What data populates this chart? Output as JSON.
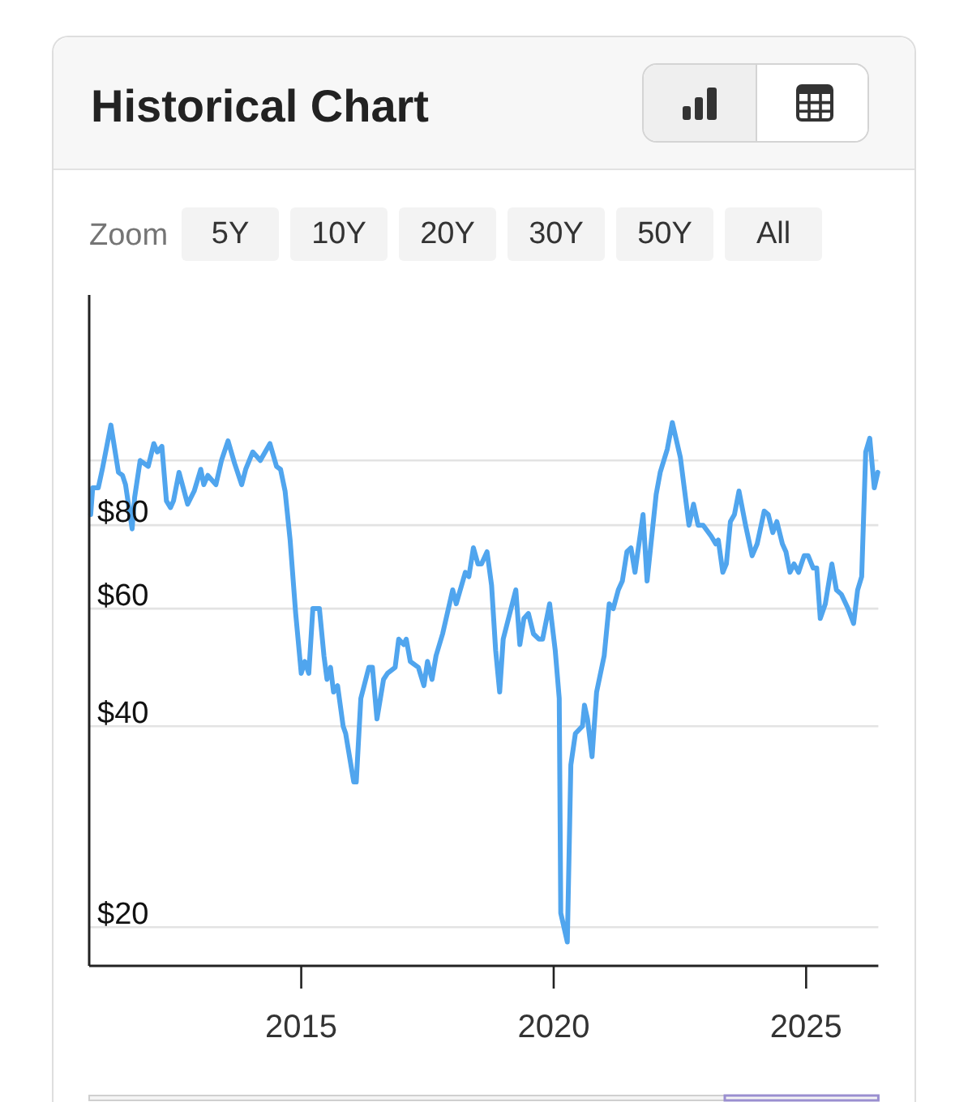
{
  "chart_data": {
    "type": "line",
    "title": "Historical Chart",
    "annotations": [
      "Zoom",
      "5Y",
      "10Y",
      "20Y",
      "30Y",
      "50Y",
      "All"
    ],
    "x": [
      2010.83,
      2010.87,
      2010.98,
      2011.06,
      2011.23,
      2011.38,
      2011.46,
      2011.52,
      2011.65,
      2011.7,
      2011.81,
      2011.97,
      2012.08,
      2012.15,
      2012.24,
      2012.33,
      2012.41,
      2012.47,
      2012.58,
      2012.75,
      2012.88,
      2013.01,
      2013.07,
      2013.15,
      2013.31,
      2013.42,
      2013.55,
      2013.68,
      2013.82,
      2013.9,
      2014.04,
      2014.19,
      2014.38,
      2014.51,
      2014.59,
      2014.68,
      2014.78,
      2014.89,
      2015.0,
      2015.07,
      2015.15,
      2015.23,
      2015.36,
      2015.45,
      2015.51,
      2015.58,
      2015.64,
      2015.72,
      2015.83,
      2015.88,
      2016.04,
      2016.09,
      2016.18,
      2016.34,
      2016.41,
      2016.5,
      2016.63,
      2016.71,
      2016.86,
      2016.93,
      2017.03,
      2017.08,
      2017.16,
      2017.32,
      2017.43,
      2017.5,
      2017.59,
      2017.67,
      2017.8,
      2018.0,
      2018.07,
      2018.25,
      2018.32,
      2018.41,
      2018.5,
      2018.57,
      2018.68,
      2018.77,
      2018.85,
      2018.93,
      2019.0,
      2019.25,
      2019.33,
      2019.41,
      2019.5,
      2019.6,
      2019.71,
      2019.78,
      2019.92,
      2020.03,
      2020.11,
      2020.14,
      2020.27,
      2020.34,
      2020.43,
      2020.57,
      2020.61,
      2020.67,
      2020.76,
      2020.85,
      2021.0,
      2021.1,
      2021.18,
      2021.28,
      2021.36,
      2021.45,
      2021.53,
      2021.61,
      2021.77,
      2021.85,
      2022.03,
      2022.11,
      2022.25,
      2022.35,
      2022.51,
      2022.68,
      2022.77,
      2022.86,
      2022.96,
      2023.12,
      2023.21,
      2023.26,
      2023.35,
      2023.42,
      2023.5,
      2023.58,
      2023.67,
      2023.8,
      2023.93,
      2024.03,
      2024.17,
      2024.25,
      2024.34,
      2024.42,
      2024.53,
      2024.6,
      2024.68,
      2024.76,
      2024.85,
      2024.96,
      2025.04,
      2025.14,
      2025.21,
      2025.28,
      2025.38,
      2025.51,
      2025.6,
      2025.7,
      2025.83,
      2025.94,
      2026.02,
      2026.1,
      2026.18,
      2026.26,
      2026.35,
      2026.42
    ],
    "values": [
      83,
      91,
      91,
      97,
      113,
      96,
      95,
      92,
      79,
      88,
      100,
      98,
      106,
      103,
      105,
      87,
      85,
      87,
      96,
      86,
      90,
      97,
      92,
      95,
      92,
      100,
      107,
      99,
      92,
      97,
      103,
      100,
      106,
      98,
      97,
      90,
      76,
      59,
      48,
      50,
      48,
      60,
      60,
      51,
      47,
      49,
      45,
      46,
      40,
      39,
      33,
      33,
      44,
      49,
      49,
      41,
      47,
      48,
      49,
      54,
      53,
      54,
      50,
      49,
      46,
      50,
      47,
      51,
      55,
      64,
      61,
      68,
      67,
      74,
      70,
      70,
      73,
      65,
      52,
      45,
      54,
      64,
      53,
      58,
      59,
      55,
      54,
      54,
      61,
      52,
      44,
      21,
      19,
      35,
      39,
      40,
      43,
      41,
      36,
      45,
      51,
      61,
      60,
      64,
      66,
      73,
      74,
      68,
      83,
      66,
      89,
      96,
      104,
      114,
      101,
      80,
      86,
      80,
      80,
      77,
      75,
      76,
      68,
      70,
      81,
      83,
      90,
      80,
      72,
      75,
      84,
      83,
      78,
      81,
      75,
      73,
      68,
      70,
      68,
      72,
      72,
      69,
      69,
      58,
      61,
      70,
      64,
      63,
      60,
      57,
      64,
      67,
      103,
      108,
      91,
      96
    ],
    "color": "#50a5ee",
    "xlim": [
      2010.8,
      2026.43
    ],
    "xticks": [
      2015,
      2020,
      2025
    ],
    "ylim": [
      17.5,
      177
    ],
    "yticks": [
      {
        "value": 20,
        "label": "$20"
      },
      {
        "value": 40,
        "label": "$40"
      },
      {
        "value": 60,
        "label": "$60"
      },
      {
        "value": 80,
        "label": "$80"
      },
      {
        "value": 100,
        "label": null
      }
    ],
    "log": true,
    "grid": "y"
  }
}
